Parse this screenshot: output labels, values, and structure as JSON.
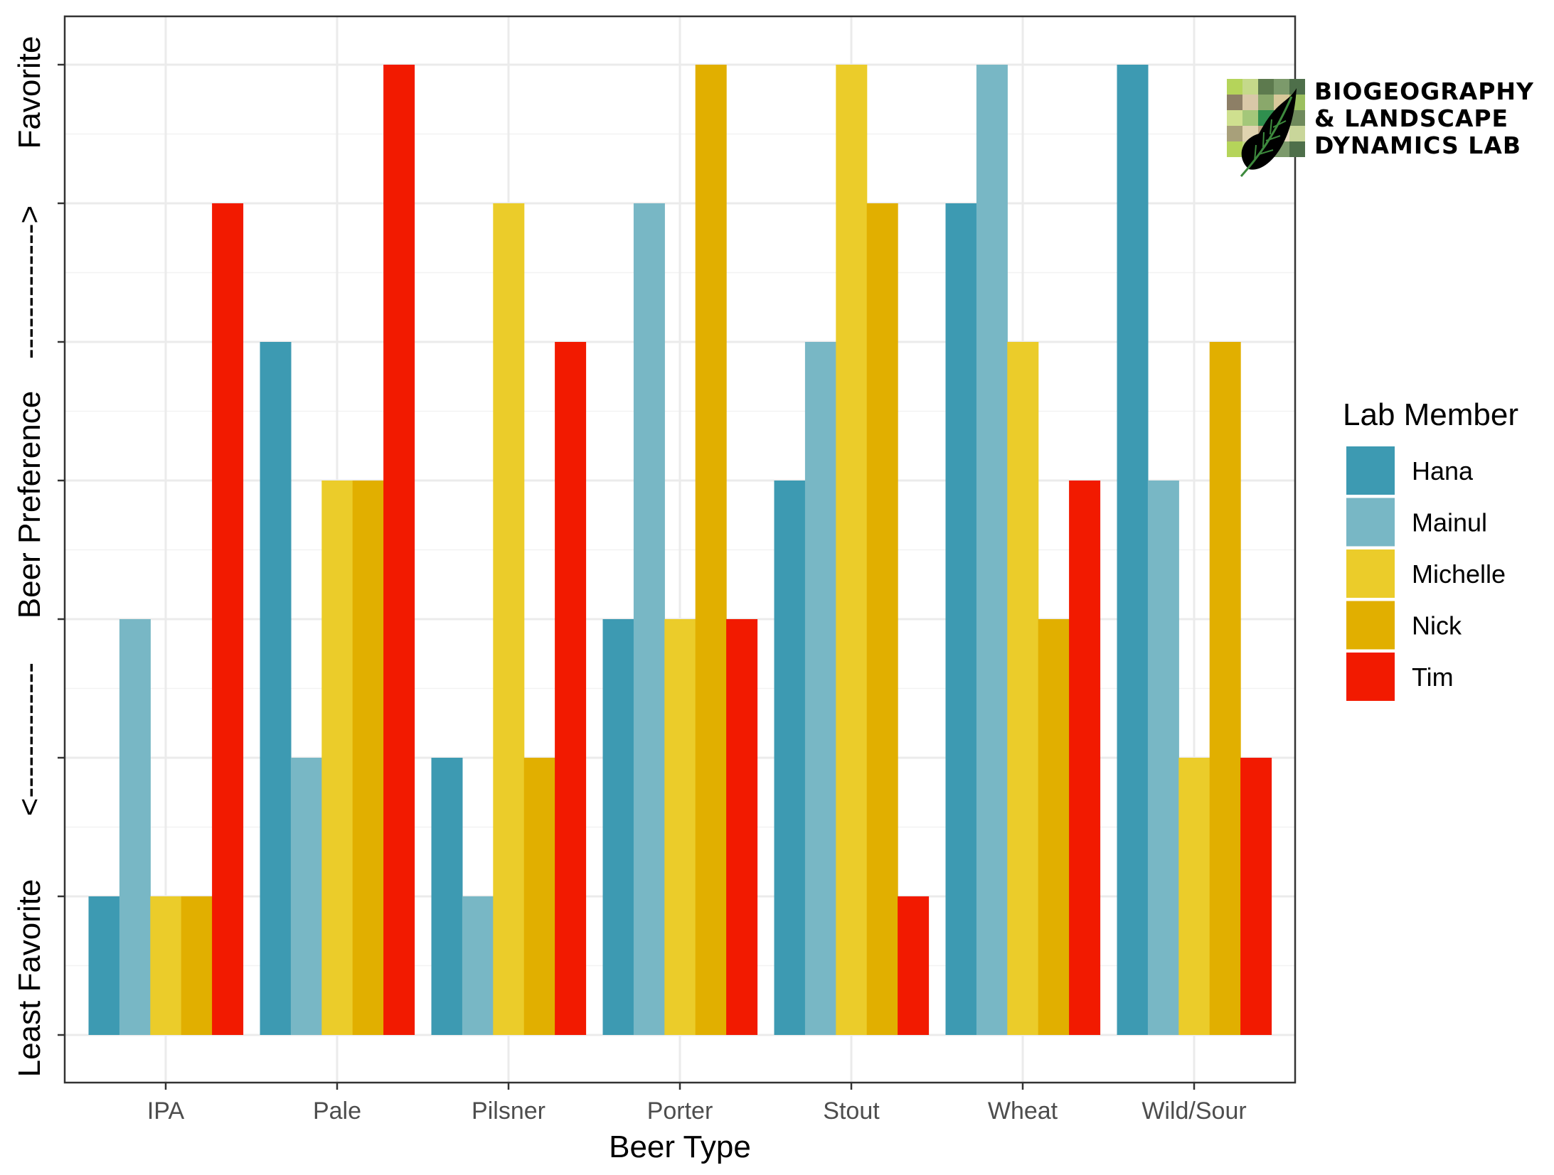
{
  "chart_data": {
    "type": "bar",
    "categories": [
      "IPA",
      "Pale",
      "Pilsner",
      "Porter",
      "Stout",
      "Wheat",
      "Wild/Sour"
    ],
    "series": [
      {
        "name": "Hana",
        "color": "#3d9ab2",
        "values": [
          1,
          5,
          2,
          3,
          4,
          6,
          7
        ]
      },
      {
        "name": "Mainul",
        "color": "#78b7c5",
        "values": [
          3,
          2,
          1,
          6,
          5,
          7,
          4
        ]
      },
      {
        "name": "Michelle",
        "color": "#ebcc2a",
        "values": [
          1,
          4,
          6,
          3,
          7,
          5,
          2
        ]
      },
      {
        "name": "Nick",
        "color": "#e1af00",
        "values": [
          1,
          4,
          2,
          7,
          6,
          3,
          5
        ]
      },
      {
        "name": "Tim",
        "color": "#f21a00",
        "values": [
          6,
          7,
          5,
          3,
          1,
          4,
          2
        ]
      }
    ],
    "xlabel": "Beer Type",
    "ylabel_parts": [
      "Least Favorite",
      "<-------------",
      "Beer Preference",
      "------------->",
      "Favorite"
    ],
    "ylim": [
      0,
      7
    ],
    "legend_title": "Lab Member",
    "legend_position": "right",
    "grid": true
  },
  "logo": {
    "lines": [
      "BIOGEOGRAPHY",
      "& LANDSCAPE",
      "DYNAMICS LAB"
    ],
    "icon": "leaf-icon"
  }
}
